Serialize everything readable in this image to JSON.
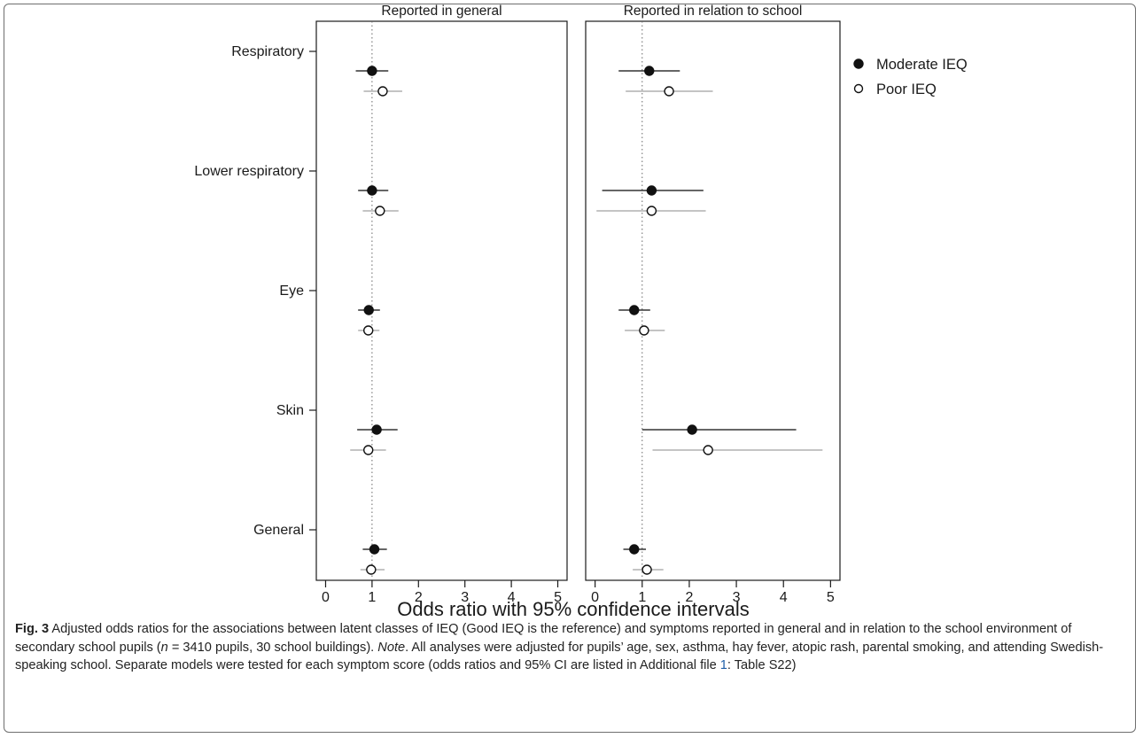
{
  "chart_data": {
    "type": "forest",
    "panels": [
      {
        "title": "Reported in general",
        "xlim": [
          -0.2,
          5.2
        ],
        "xticks": [
          0,
          1,
          2,
          3,
          4,
          5
        ],
        "reference_line": 1,
        "symptoms": [
          {
            "name": "Respiratory",
            "moderate": {
              "or": 1.0,
              "ci": [
                0.65,
                1.35
              ]
            },
            "poor": {
              "or": 1.23,
              "ci": [
                0.82,
                1.65
              ]
            }
          },
          {
            "name": "Lower respiratory",
            "moderate": {
              "or": 1.0,
              "ci": [
                0.7,
                1.35
              ]
            },
            "poor": {
              "or": 1.17,
              "ci": [
                0.8,
                1.57
              ]
            }
          },
          {
            "name": "Eye",
            "moderate": {
              "or": 0.93,
              "ci": [
                0.7,
                1.17
              ]
            },
            "poor": {
              "or": 0.92,
              "ci": [
                0.7,
                1.16
              ]
            }
          },
          {
            "name": "Skin",
            "moderate": {
              "or": 1.1,
              "ci": [
                0.68,
                1.55
              ]
            },
            "poor": {
              "or": 0.92,
              "ci": [
                0.53,
                1.3
              ]
            }
          },
          {
            "name": "General",
            "moderate": {
              "or": 1.05,
              "ci": [
                0.8,
                1.32
              ]
            },
            "poor": {
              "or": 0.98,
              "ci": [
                0.75,
                1.27
              ]
            }
          }
        ]
      },
      {
        "title": "Reported in relation to school",
        "xlim": [
          -0.2,
          5.2
        ],
        "xticks": [
          0,
          1,
          2,
          3,
          4,
          5
        ],
        "reference_line": 1,
        "symptoms": [
          {
            "name": "Respiratory",
            "moderate": {
              "or": 1.15,
              "ci": [
                0.5,
                1.8
              ]
            },
            "poor": {
              "or": 1.57,
              "ci": [
                0.65,
                2.5
              ]
            }
          },
          {
            "name": "Lower respiratory",
            "moderate": {
              "or": 1.2,
              "ci": [
                0.15,
                2.3
              ]
            },
            "poor": {
              "or": 1.2,
              "ci": [
                0.03,
                2.35
              ]
            }
          },
          {
            "name": "Eye",
            "moderate": {
              "or": 0.83,
              "ci": [
                0.5,
                1.17
              ]
            },
            "poor": {
              "or": 1.04,
              "ci": [
                0.63,
                1.48
              ]
            }
          },
          {
            "name": "Skin",
            "moderate": {
              "or": 2.06,
              "ci": [
                1.0,
                4.27
              ]
            },
            "poor": {
              "or": 2.4,
              "ci": [
                1.22,
                4.83
              ]
            }
          },
          {
            "name": "General",
            "moderate": {
              "or": 0.83,
              "ci": [
                0.6,
                1.08
              ]
            },
            "poor": {
              "or": 1.1,
              "ci": [
                0.8,
                1.45
              ]
            }
          }
        ]
      }
    ],
    "series": [
      {
        "name": "Moderate IEQ",
        "key": "moderate",
        "marker": "filled",
        "color": "#111111",
        "ci_color": "#333333"
      },
      {
        "name": "Poor IEQ",
        "key": "poor",
        "marker": "open",
        "color": "#111111",
        "ci_color": "#b0b0b0"
      }
    ],
    "xlabel": "Odds ratio with 95% confidence intervals",
    "legend_position": "right"
  },
  "caption": {
    "fig_label": "Fig. 3",
    "text_1": "Adjusted odds ratios for the associations between latent classes of IEQ (Good IEQ is the reference) and symptoms reported in general and in relation to the school environment of secondary school pupils (",
    "n_symbol": "n",
    "text_2": " = 3410 pupils, 30 school buildings). ",
    "note_label": "Note",
    "text_3": ". All analyses were adjusted for pupils’ age, sex, asthma, hay fever, atopic rash, parental smoking, and attending Swedish-speaking school. Separate models were tested for each symptom score (odds ratios and 95% CI are listed in Additional file ",
    "file_link": "1",
    "text_4": ": Table S22)"
  }
}
